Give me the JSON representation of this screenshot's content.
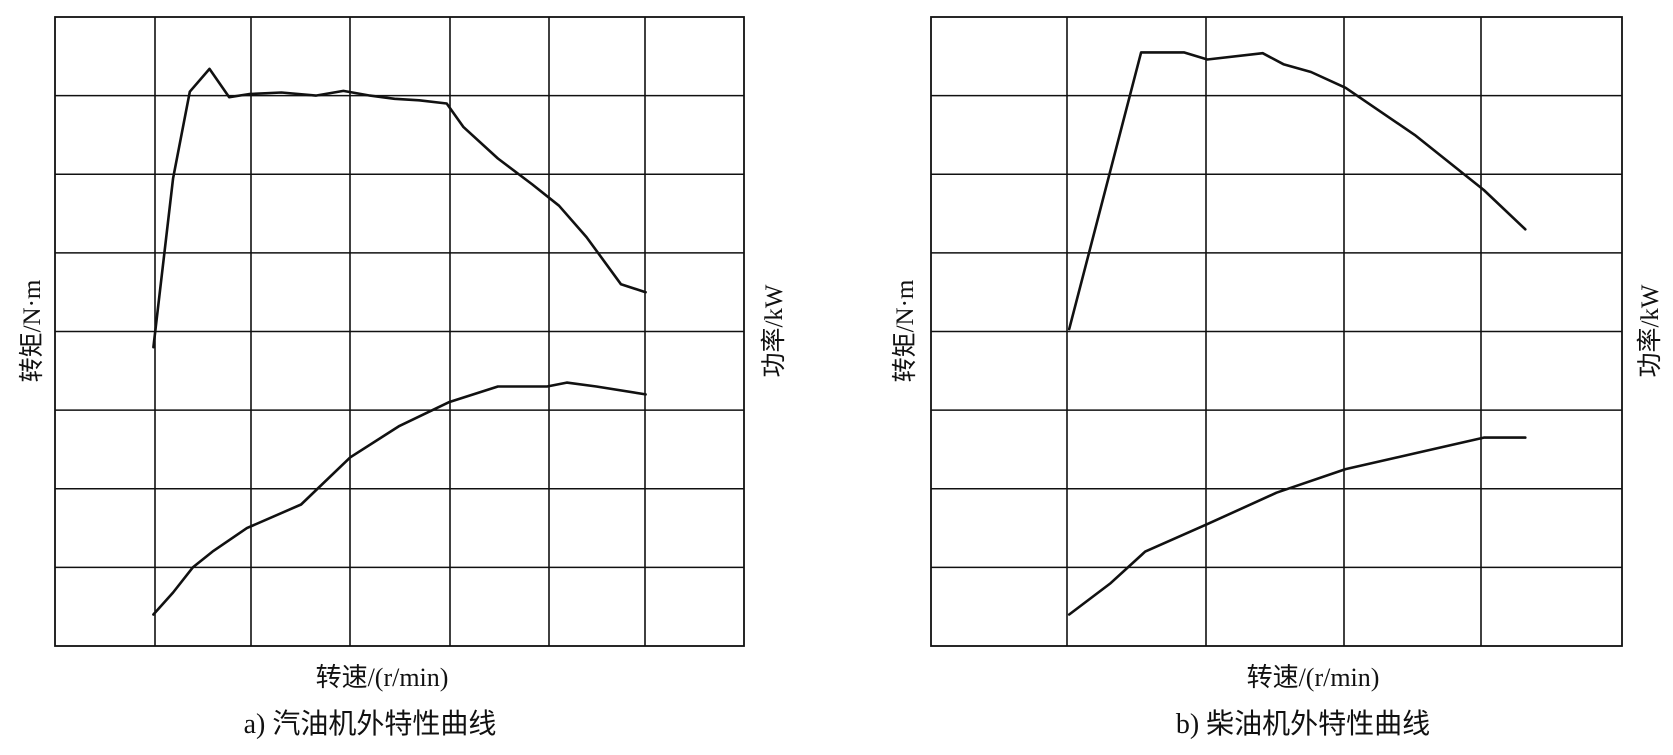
{
  "chart_data": [
    {
      "type": "line",
      "caption": "a) 汽油机外特性曲线",
      "xlabel": "转速/(r/min)",
      "ylabel_left": "转矩/N·m",
      "ylabel_right": "功率/kW",
      "grid": true,
      "xlim": [
        -1,
        6
      ],
      "ylim": [
        0,
        8
      ],
      "series": [
        {
          "id": "torque",
          "x": [
            0,
            0.2,
            0.37,
            0.57,
            0.77,
            0.97,
            1.3,
            1.65,
            1.93,
            2.2,
            2.45,
            2.7,
            2.98,
            3.15,
            3.5,
            3.85,
            4.12,
            4.4,
            4.75,
            5.0
          ],
          "y": [
            3.8,
            5.95,
            7.05,
            7.34,
            6.98,
            7.02,
            7.04,
            7.0,
            7.06,
            7.0,
            6.96,
            6.94,
            6.9,
            6.6,
            6.2,
            5.87,
            5.6,
            5.2,
            4.6,
            4.5
          ]
        },
        {
          "id": "power",
          "x": [
            0,
            0.2,
            0.4,
            0.6,
            0.95,
            1.5,
            2.0,
            2.5,
            3.0,
            3.5,
            4.0,
            4.2,
            4.5,
            5.0
          ],
          "y": [
            0.4,
            0.68,
            1.0,
            1.2,
            1.5,
            1.8,
            2.4,
            2.8,
            3.1,
            3.3,
            3.3,
            3.35,
            3.3,
            3.2
          ]
        }
      ]
    },
    {
      "type": "line",
      "caption": "b) 柴油机外特性曲线",
      "xlabel": "转速/(r/min)",
      "ylabel_left": "转矩/N·m",
      "ylabel_right": "功率/kW",
      "grid": true,
      "xlim": [
        -1,
        4
      ],
      "ylim": [
        0,
        8
      ],
      "series": [
        {
          "id": "torque",
          "x": [
            0,
            0.52,
            0.83,
            1.0,
            1.4,
            1.55,
            1.75,
            2.0,
            2.5,
            3.0,
            3.3
          ],
          "y": [
            4.03,
            7.55,
            7.55,
            7.46,
            7.54,
            7.4,
            7.3,
            7.1,
            6.5,
            5.8,
            5.3
          ]
        },
        {
          "id": "power",
          "x": [
            0,
            0.3,
            0.55,
            1.0,
            1.5,
            2.0,
            2.5,
            3.0,
            3.3
          ],
          "y": [
            0.4,
            0.8,
            1.2,
            1.55,
            1.95,
            2.25,
            2.45,
            2.65,
            2.65
          ]
        }
      ]
    }
  ]
}
